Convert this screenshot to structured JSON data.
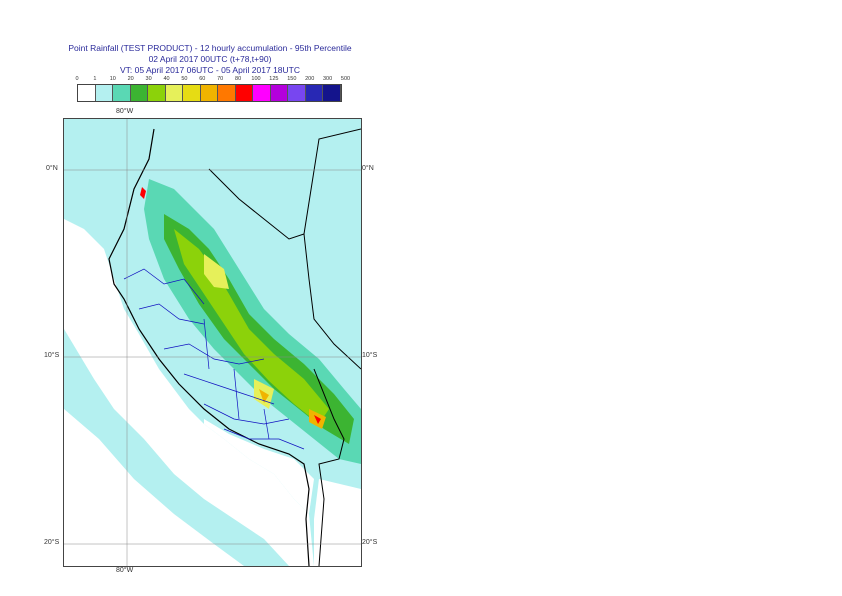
{
  "title": {
    "line1": "Point Rainfall (TEST PRODUCT) - 12 hourly accumulation - 95th Percentile",
    "line2": "02 April 2017 00UTC (t+78,t+90)",
    "line3": "VT: 05 April 2017 06UTC - 05 April 2017 18UTC"
  },
  "legend": {
    "thresholds": [
      "0",
      "1",
      "10",
      "20",
      "30",
      "40",
      "50",
      "60",
      "70",
      "80",
      "100",
      "125",
      "150",
      "200",
      "300",
      "500"
    ],
    "colors": [
      "#ffffff",
      "#b4f0f0",
      "#5ad8b4",
      "#3cb432",
      "#8cd20a",
      "#e6f05a",
      "#e6dc14",
      "#f0b400",
      "#ff7800",
      "#ff0000",
      "#ff00ff",
      "#b400dc",
      "#7846f0",
      "#2828b4",
      "#14148c"
    ]
  },
  "axes": {
    "lon_top": "80°W",
    "lon_bottom": "80°W",
    "lat_0_left": "0°N",
    "lat_0_right": "0°N",
    "lat_10_left": "10°S",
    "lat_10_right": "10°S",
    "lat_20_left": "20°S",
    "lat_20_right": "20°S"
  }
}
